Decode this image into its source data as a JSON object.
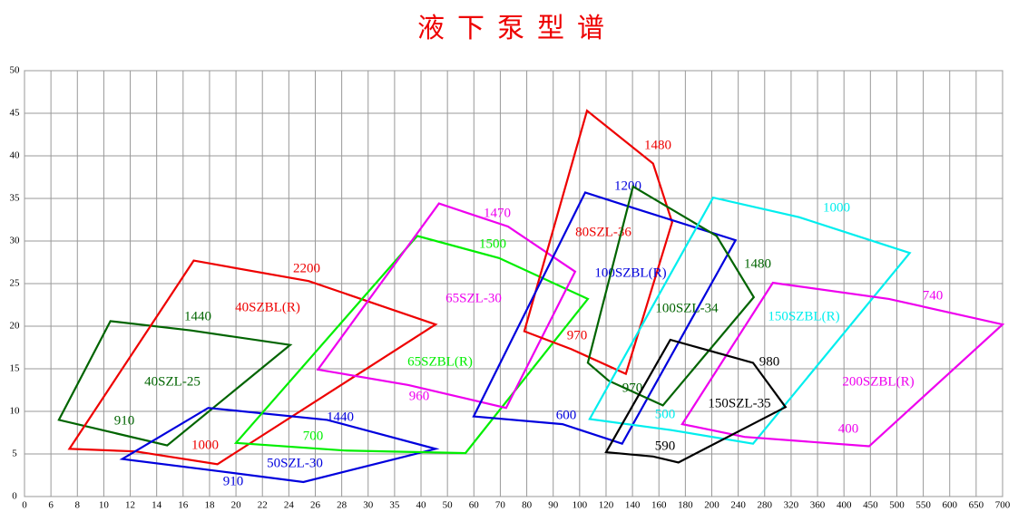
{
  "chart_data": {
    "type": "polygon",
    "title": "液下泵型谱",
    "xlim": [
      0,
      700
    ],
    "xticks": [
      0,
      6,
      8,
      10,
      12,
      14,
      16,
      18,
      20,
      22,
      24,
      26,
      28,
      30,
      35,
      40,
      50,
      60,
      70,
      80,
      90,
      100,
      120,
      140,
      160,
      180,
      200,
      240,
      280,
      320,
      360,
      400,
      450,
      500,
      550,
      600,
      650,
      700
    ],
    "ylim": [
      0,
      50
    ],
    "yticks": [
      0,
      5,
      10,
      15,
      20,
      25,
      30,
      35,
      40,
      45,
      50
    ],
    "grid": true,
    "series": [
      {
        "name": "40SZL-25",
        "color": "#006400",
        "x": [
          6.6,
          10.5,
          16.6,
          24.1,
          14.8
        ],
        "y": [
          9.0,
          20.6,
          19.5,
          17.8,
          6.0
        ],
        "speeds": [
          1440,
          910
        ]
      },
      {
        "name": "40SZBL(R)",
        "color": "#ee0000",
        "x": [
          7.4,
          16.8,
          25.5,
          45.5,
          18.6,
          12.4
        ],
        "y": [
          5.6,
          27.7,
          25.3,
          20.2,
          3.8,
          5.3
        ],
        "speeds": [
          2200,
          1000
        ]
      },
      {
        "name": "50SZL-30",
        "color": "#0000dd",
        "x": [
          11.4,
          17.9,
          26.9,
          45.5,
          25.1,
          18.6
        ],
        "y": [
          4.4,
          10.4,
          9.0,
          5.6,
          1.7,
          3.0
        ],
        "speeds": [
          1440,
          910
        ]
      },
      {
        "name": "65SZBL(R)",
        "color": "#00ee00",
        "x": [
          20.0,
          39.3,
          69.5,
          106.2,
          56.8,
          28.2
        ],
        "y": [
          6.3,
          30.6,
          28.0,
          23.2,
          5.1,
          5.4
        ],
        "speeds": [
          1500,
          700
        ]
      },
      {
        "name": "65SZL-30",
        "color": "#ee00ee",
        "x": [
          26.2,
          46.8,
          72.9,
          98.3,
          72.2,
          37.6
        ],
        "y": [
          14.9,
          34.4,
          31.7,
          26.4,
          10.4,
          13.1
        ],
        "speeds": [
          1470,
          960
        ]
      },
      {
        "name": "80SZL-36",
        "color": "#ee0000",
        "x": [
          79.1,
          105.6,
          155.6,
          170,
          135,
          96.9
        ],
        "y": [
          19.4,
          45.3,
          39.1,
          32.2,
          14.4,
          17.3
        ],
        "speeds": [
          1480,
          970
        ]
      },
      {
        "name": "100SZBL(R)",
        "color": "#0000dd",
        "x": [
          59.9,
          104.2,
          142.4,
          236,
          132.2,
          93.5
        ],
        "y": [
          9.4,
          35.7,
          33.8,
          30.1,
          6.2,
          8.5
        ],
        "speeds": [
          1200,
          600
        ]
      },
      {
        "name": "100SZL-34",
        "color": "#006400",
        "x": [
          106.2,
          140.4,
          207.2,
          263.6,
          163,
          122
        ],
        "y": [
          15.7,
          36.4,
          30.6,
          23.4,
          10.7,
          13.6
        ],
        "speeds": [
          1480,
          970
        ]
      },
      {
        "name": "150SZBL(R)",
        "color": "#00eeee",
        "x": [
          107.6,
          202,
          332,
          524.5,
          262.4,
          169.4
        ],
        "y": [
          9.1,
          35.1,
          32.8,
          28.6,
          6.2,
          7.8
        ],
        "speeds": [
          1000,
          500
        ]
      },
      {
        "name": "200SZBL(R)",
        "color": "#ee00ee",
        "x": [
          177.6,
          292.4,
          485,
          700,
          447.5,
          249.6
        ],
        "y": [
          8.5,
          25.1,
          23.2,
          20.2,
          5.9,
          7.0
        ],
        "speeds": [
          740,
          400
        ]
      },
      {
        "name": "150SZL-35",
        "color": "#000000",
        "x": [
          120,
          168.6,
          262.4,
          311.6,
          174.8,
          155.6
        ],
        "y": [
          5.2,
          18.4,
          15.7,
          10.5,
          4.0,
          4.7
        ],
        "speeds": [
          980,
          590
        ]
      }
    ]
  }
}
